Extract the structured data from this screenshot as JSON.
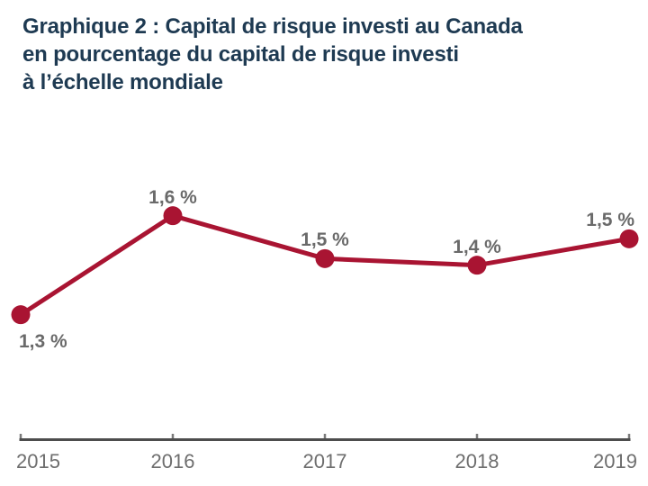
{
  "figure": {
    "title_lines": [
      "Graphique 2 : Capital de risque investi au Canada",
      "en pourcentage du capital de risque investi",
      "à l’échelle mondiale"
    ]
  },
  "chart_data": {
    "type": "line",
    "title": "Graphique 2 : Capital de risque investi au Canada en pourcentage du capital de risque investi à l’échelle mondiale",
    "categories": [
      "2015",
      "2016",
      "2017",
      "2018",
      "2019"
    ],
    "series": [
      {
        "name": "Capital de risque investi au Canada en % du capital de risque mondial",
        "values": [
          1.3,
          1.6,
          1.5,
          1.4,
          1.5
        ],
        "values_plotted": [
          1.3,
          1.6,
          1.47,
          1.45,
          1.53
        ]
      }
    ],
    "point_labels": [
      "1,3 %",
      "1,6 %",
      "1,5 %",
      "1,4 %",
      "1,5 %"
    ],
    "label_placements": [
      "below-left",
      "above-center",
      "above-center",
      "above-center",
      "above-right"
    ],
    "xlabel": "",
    "ylabel": "",
    "ylim": [
      0.92,
      1.79
    ],
    "grid": false,
    "legend": "none",
    "marker": "filled-circle",
    "colors": {
      "line": "#A91432",
      "marker": "#A91432",
      "point_label": "#6A6A6A",
      "axis": "#4D4D4D",
      "tick": "#7A7A7A",
      "tick_label": "#6E6E6E",
      "title": "#1E3A52",
      "background": "#FFFFFF"
    }
  }
}
